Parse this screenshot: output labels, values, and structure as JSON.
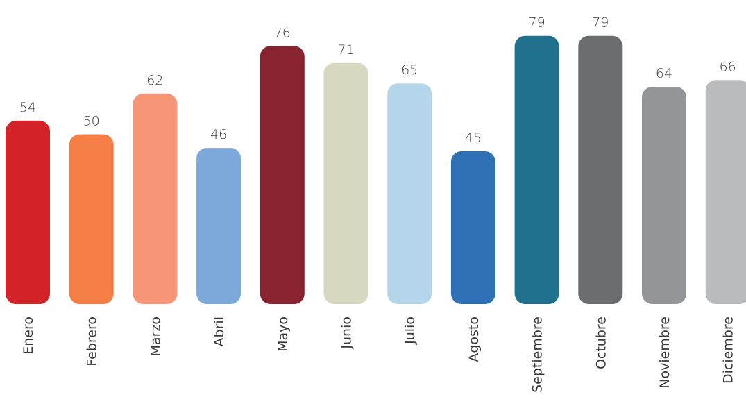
{
  "chart_data": {
    "type": "bar",
    "categories": [
      "Enero",
      "Febrero",
      "Marzo",
      "Abril",
      "Mayo",
      "Junio",
      "Julio",
      "Agosto",
      "Septiembre",
      "Octubre",
      "Noviembre",
      "Diciembre"
    ],
    "values": [
      54,
      50,
      62,
      46,
      76,
      71,
      65,
      45,
      79,
      79,
      64,
      66
    ],
    "colors": [
      "#d42229",
      "#f47e45",
      "#f69677",
      "#7da8da",
      "#882430",
      "#d7d8bf",
      "#b5d6ea",
      "#2d70b5",
      "#21708e",
      "#6c6d6f",
      "#939598",
      "#b9bbbd"
    ],
    "title": "",
    "xlabel": "",
    "ylabel": "",
    "data_labels": true,
    "grid": false,
    "legend": "none"
  }
}
